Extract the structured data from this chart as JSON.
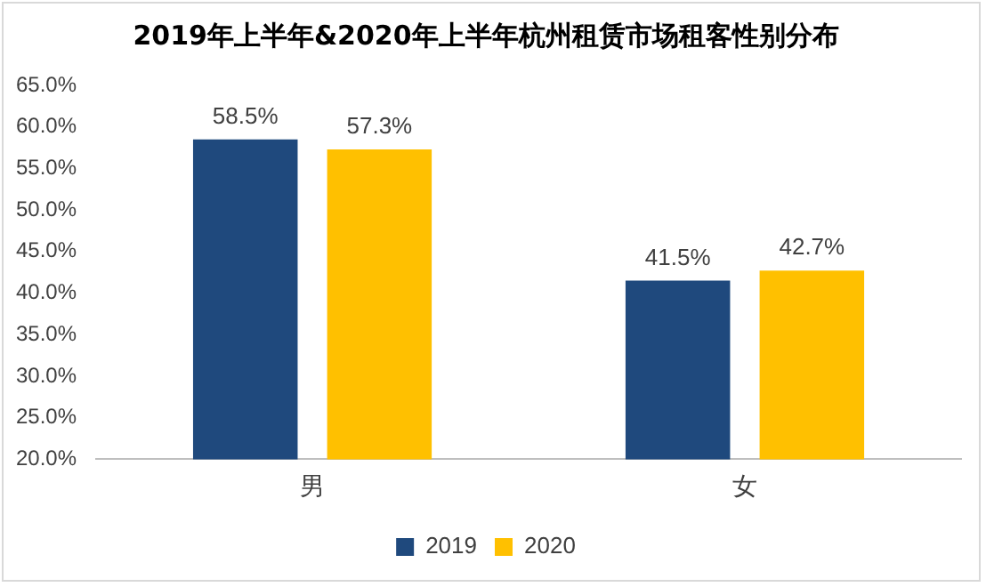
{
  "chart_data": {
    "type": "bar",
    "title": "2019年上半年&2020年上半年杭州租赁市场租客性别分布",
    "categories": [
      "男",
      "女"
    ],
    "series": [
      {
        "name": "2019",
        "color": "#1f497d",
        "values": [
          58.5,
          41.5
        ],
        "value_labels": [
          "58.5%",
          "41.5%"
        ]
      },
      {
        "name": "2020",
        "color": "#ffc000",
        "values": [
          57.3,
          42.7
        ],
        "value_labels": [
          "57.3%",
          "42.7%"
        ]
      }
    ],
    "ylim": [
      20,
      65
    ],
    "yticks": [
      {
        "value": 20,
        "label": "20.0%"
      },
      {
        "value": 25,
        "label": "25.0%"
      },
      {
        "value": 30,
        "label": "30.0%"
      },
      {
        "value": 35,
        "label": "35.0%"
      },
      {
        "value": 40,
        "label": "40.0%"
      },
      {
        "value": 45,
        "label": "45.0%"
      },
      {
        "value": 50,
        "label": "50.0%"
      },
      {
        "value": 55,
        "label": "55.0%"
      },
      {
        "value": 60,
        "label": "60.0%"
      },
      {
        "value": 65,
        "label": "65.0%"
      }
    ],
    "grid": false,
    "legend": "bottom"
  }
}
